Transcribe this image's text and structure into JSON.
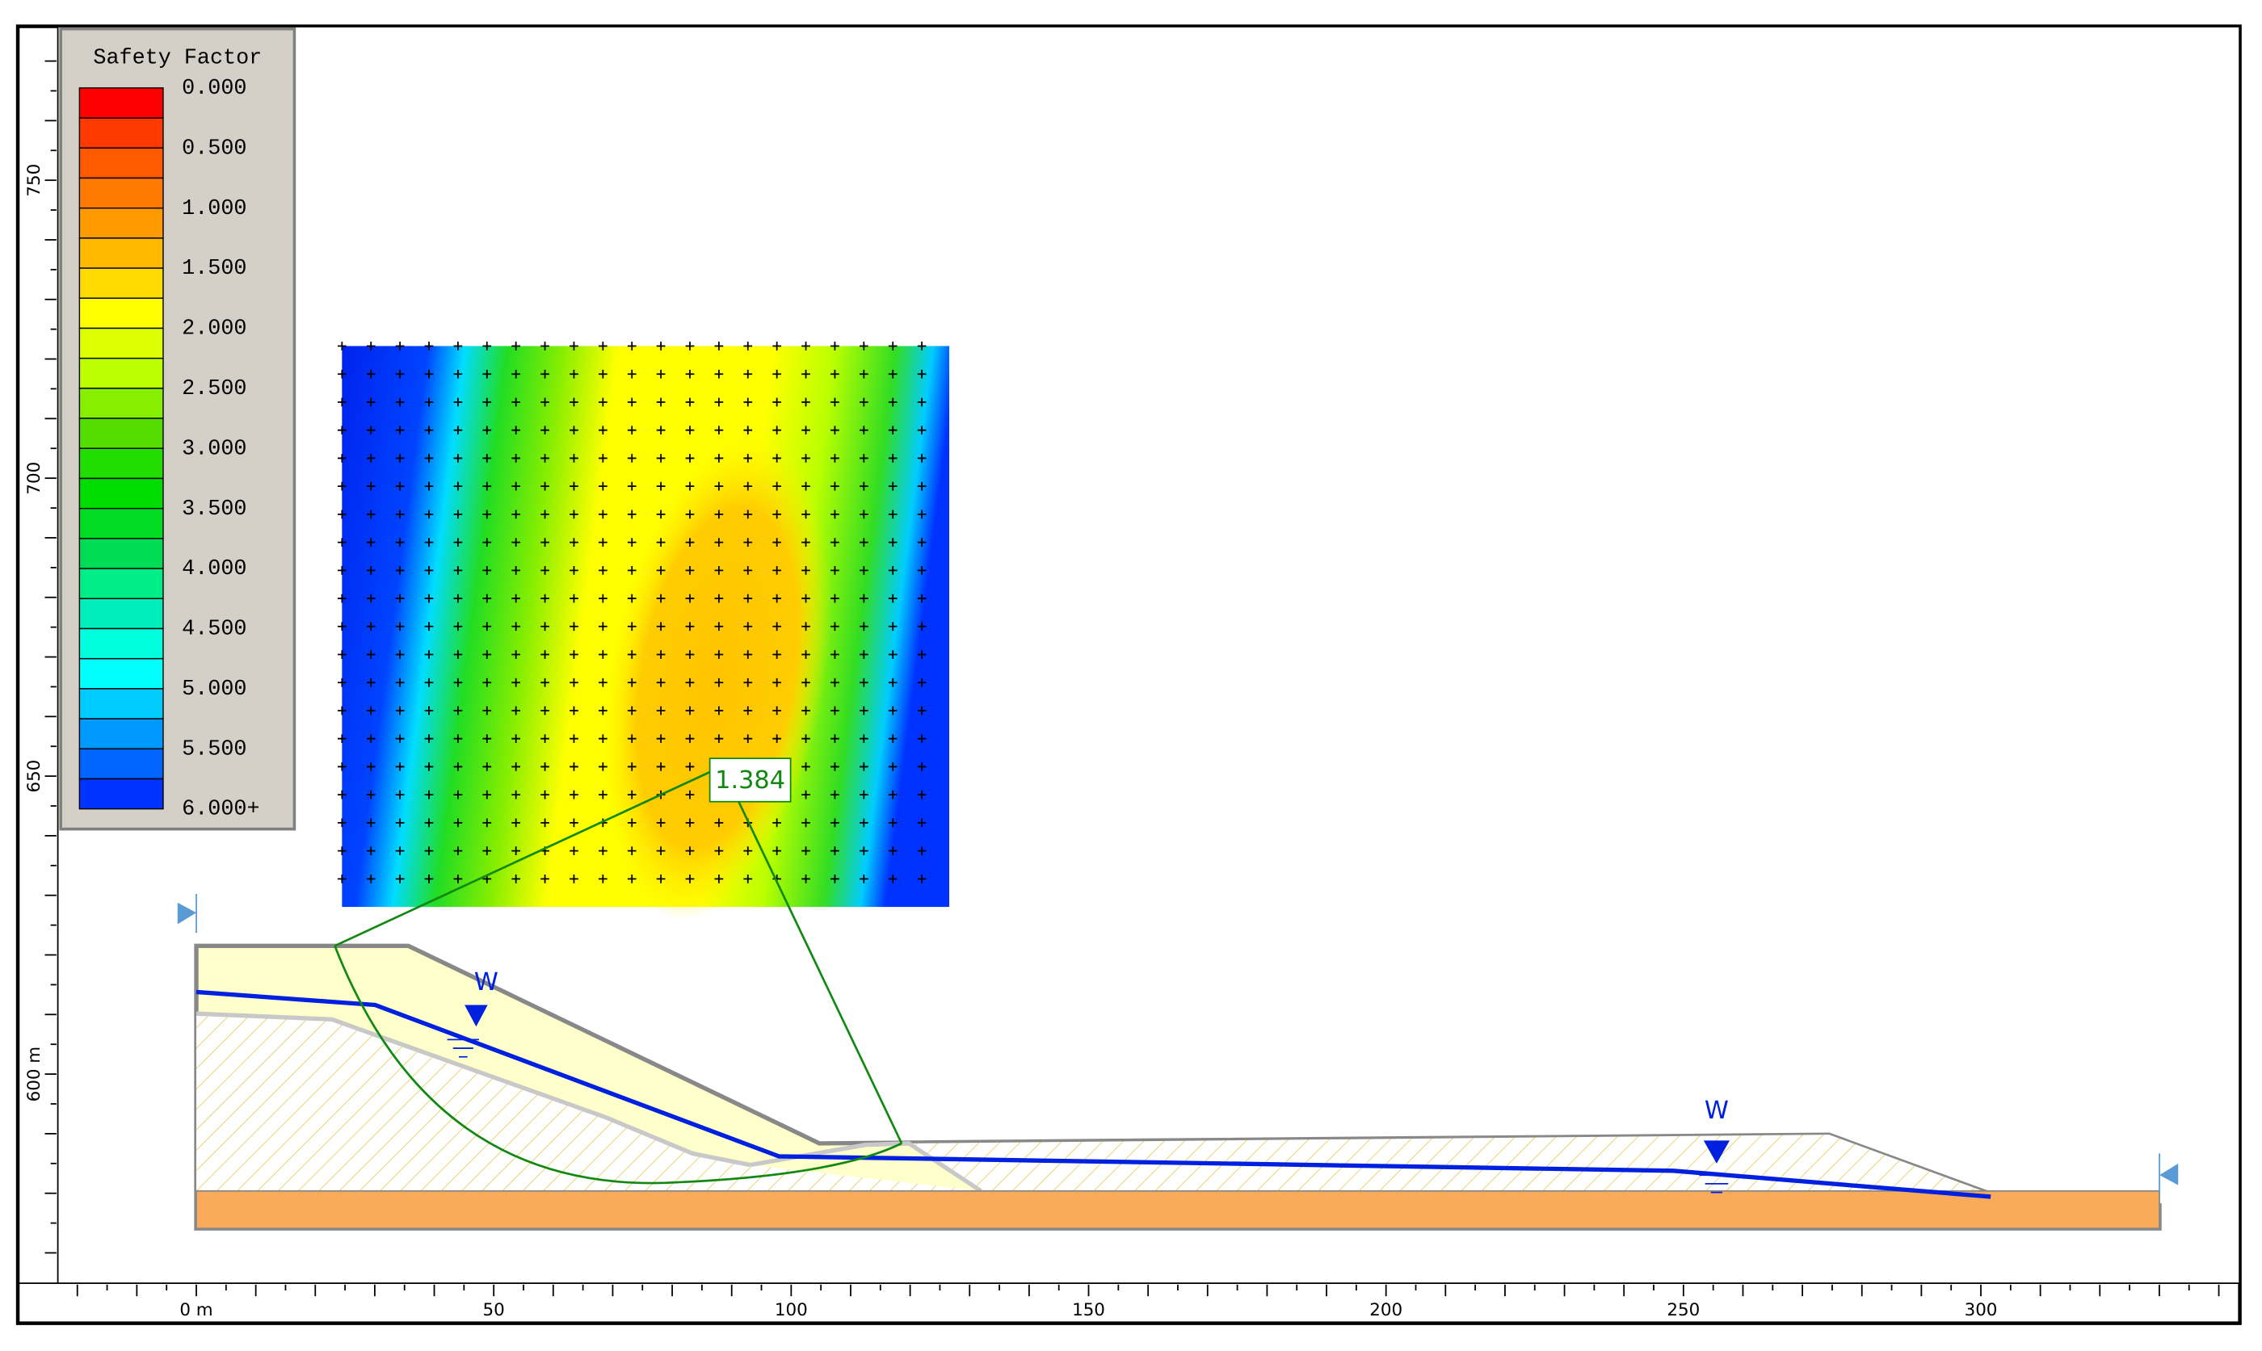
{
  "legend": {
    "title": "Safety Factor",
    "labels": [
      "0.000",
      "0.500",
      "1.000",
      "1.500",
      "2.000",
      "2.500",
      "3.000",
      "3.500",
      "4.000",
      "4.500",
      "5.000",
      "5.500",
      "6.000+"
    ],
    "colors": [
      "#ff0000",
      "#ff3a00",
      "#ff5a00",
      "#ff7a00",
      "#ff9a00",
      "#ffba00",
      "#ffda00",
      "#ffff00",
      "#ddff00",
      "#bbff00",
      "#88ee00",
      "#55dd00",
      "#22dd00",
      "#00dd00",
      "#00dd22",
      "#00dd55",
      "#00ee88",
      "#00eebb",
      "#00ffdd",
      "#00ffff",
      "#00ccff",
      "#0099ff",
      "#0066ff",
      "#0033ff"
    ]
  },
  "x_axis": {
    "labels": [
      "0 m",
      "50",
      "100",
      "150",
      "200",
      "250",
      "300"
    ]
  },
  "y_axis": {
    "labels": [
      "750",
      "700",
      "650",
      "600 m"
    ]
  },
  "critical_surface": {
    "label": "1.384"
  },
  "water_table": {
    "markers": [
      "W",
      "W"
    ]
  }
}
